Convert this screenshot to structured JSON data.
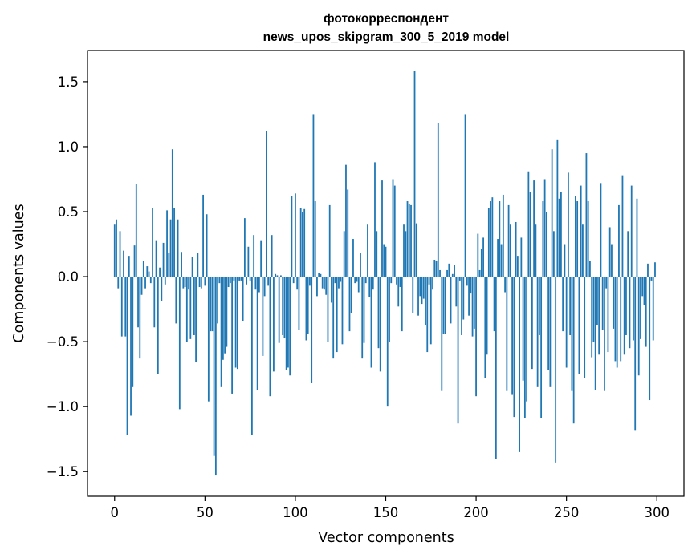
{
  "chart_data": {
    "type": "bar",
    "title_line1": "фотокорреспондент",
    "title_line2": "news_upos_skipgram_300_5_2019 model",
    "xlabel": "Vector components",
    "ylabel": "Components values",
    "xlim": [
      -15,
      315
    ],
    "ylim": [
      -1.69,
      1.74
    ],
    "xticks": [
      0,
      50,
      100,
      150,
      200,
      250,
      300
    ],
    "xtick_labels": [
      "0",
      "50",
      "100",
      "150",
      "200",
      "250",
      "300"
    ],
    "yticks": [
      -1.5,
      -1.0,
      -0.5,
      0.0,
      0.5,
      1.0,
      1.5
    ],
    "ytick_labels": [
      "−1.5",
      "−1.0",
      "−0.5",
      "0.0",
      "0.5",
      "1.0",
      "1.5"
    ],
    "bar_color": "#1f77b4",
    "grid": false,
    "legend": false,
    "values": [
      0.4,
      0.44,
      -0.09,
      0.35,
      -0.46,
      0.2,
      -0.46,
      -1.22,
      0.16,
      -1.07,
      -0.85,
      0.24,
      0.71,
      -0.39,
      -0.63,
      -0.14,
      0.12,
      -0.09,
      0.08,
      0.04,
      -0.05,
      0.53,
      -0.39,
      0.28,
      -0.75,
      0.07,
      -0.19,
      0.26,
      -0.06,
      0.51,
      0.18,
      0.44,
      0.98,
      0.53,
      -0.36,
      0.44,
      -1.02,
      0.19,
      -0.09,
      -0.08,
      -0.5,
      -0.1,
      -0.48,
      0.15,
      -0.45,
      -0.66,
      0.18,
      -0.08,
      -0.09,
      0.63,
      -0.07,
      0.48,
      -0.96,
      -0.42,
      -0.42,
      -1.38,
      -1.53,
      -0.36,
      -0.05,
      -0.85,
      -0.64,
      -0.59,
      -0.54,
      -0.08,
      -0.05,
      -0.9,
      -0.03,
      -0.7,
      -0.71,
      -0.03,
      -0.03,
      -0.34,
      0.45,
      -0.06,
      0.23,
      -0.03,
      -1.22,
      0.32,
      -0.1,
      -0.87,
      -0.12,
      0.28,
      -0.61,
      -0.15,
      1.12,
      -0.07,
      -0.92,
      0.32,
      -0.73,
      0.02,
      0.01,
      -0.51,
      0.01,
      -0.45,
      -0.47,
      -0.72,
      -0.7,
      -0.76,
      0.62,
      -0.05,
      0.64,
      -0.1,
      -0.41,
      0.53,
      0.5,
      0.52,
      -0.49,
      -0.44,
      -0.07,
      -0.82,
      1.25,
      0.58,
      -0.15,
      0.03,
      0.02,
      -0.09,
      -0.1,
      -0.14,
      -0.5,
      0.55,
      -0.2,
      -0.63,
      -0.05,
      -0.58,
      -0.09,
      -0.04,
      -0.52,
      0.35,
      0.86,
      0.67,
      -0.42,
      -0.28,
      0.29,
      -0.05,
      -0.04,
      -0.12,
      0.18,
      -0.63,
      -0.51,
      -0.05,
      0.4,
      -0.16,
      -0.7,
      -0.1,
      0.88,
      0.35,
      -0.55,
      -0.73,
      0.74,
      0.25,
      0.23,
      -1.0,
      -0.5,
      -0.05,
      0.75,
      0.7,
      -0.06,
      -0.23,
      -0.08,
      -0.42,
      0.4,
      0.35,
      0.58,
      0.56,
      0.55,
      -0.28,
      1.58,
      0.41,
      -0.3,
      -0.15,
      -0.21,
      -0.17,
      -0.37,
      -0.58,
      -0.06,
      -0.52,
      -0.1,
      0.13,
      0.12,
      1.18,
      0.05,
      -0.88,
      -0.44,
      -0.44,
      0.05,
      0.1,
      -0.36,
      0.02,
      0.09,
      -0.23,
      -1.13,
      -0.03,
      -0.45,
      -0.33,
      1.25,
      -0.07,
      -0.3,
      -0.13,
      -0.46,
      -0.4,
      -0.92,
      0.33,
      0.05,
      0.21,
      0.3,
      -0.78,
      -0.6,
      0.53,
      0.58,
      0.61,
      -0.42,
      -1.4,
      0.29,
      0.58,
      0.25,
      0.63,
      -0.12,
      -0.88,
      0.55,
      0.4,
      -0.91,
      -1.08,
      0.42,
      0.16,
      -1.35,
      0.3,
      -0.8,
      -1.09,
      -0.96,
      0.81,
      0.65,
      -0.71,
      0.74,
      0.4,
      -0.85,
      -0.45,
      -1.09,
      0.58,
      0.75,
      0.5,
      -0.72,
      -0.85,
      0.98,
      0.35,
      -1.43,
      1.05,
      0.6,
      0.65,
      -0.42,
      0.25,
      -0.7,
      0.8,
      -0.45,
      -0.88,
      -1.13,
      0.62,
      0.58,
      -0.75,
      0.7,
      0.4,
      -0.78,
      0.95,
      0.58,
      0.12,
      -0.62,
      -0.5,
      -0.87,
      -0.37,
      -0.6,
      0.72,
      -0.41,
      -0.88,
      -0.09,
      -0.58,
      0.38,
      0.25,
      -0.4,
      -0.65,
      -0.7,
      0.55,
      -0.65,
      0.78,
      -0.6,
      -0.45,
      0.35,
      -0.55,
      0.7,
      -0.49,
      -1.18,
      0.6,
      -0.76,
      -0.48,
      -0.15,
      -0.22,
      -0.54,
      0.1,
      -0.95,
      -0.03,
      -0.49,
      0.11
    ]
  }
}
